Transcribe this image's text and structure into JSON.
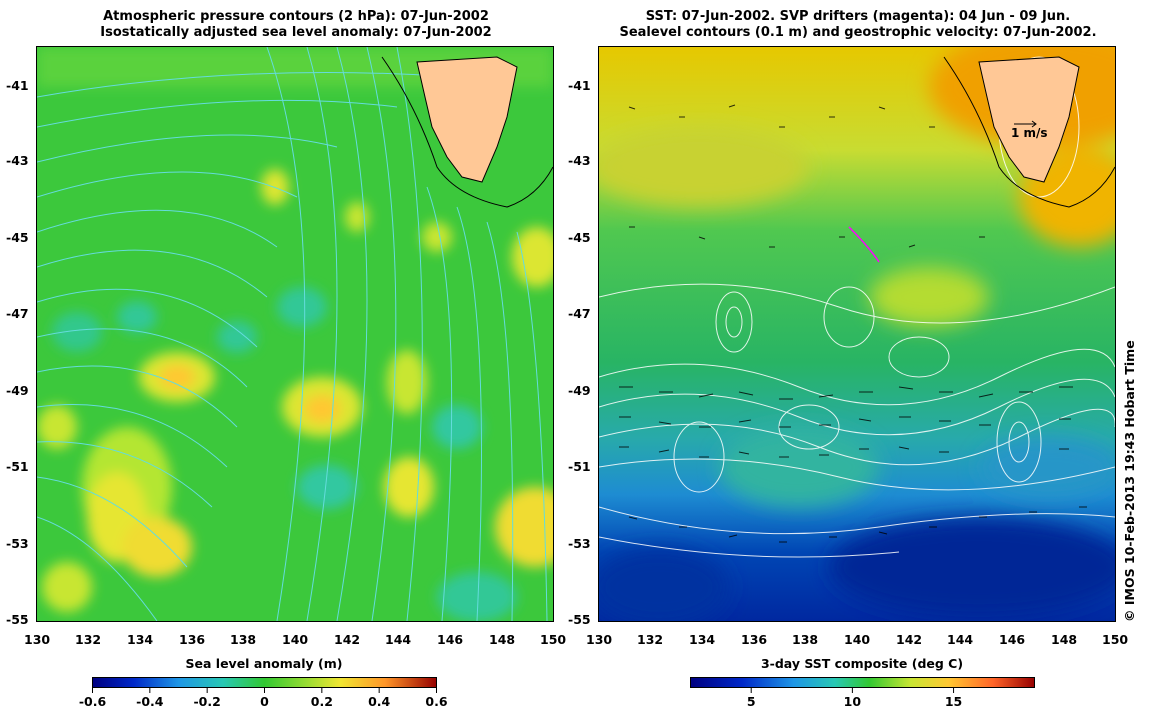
{
  "left_panel": {
    "title_line1": "Atmospheric pressure contours (2 hPa): 07-Jun-2002",
    "title_line2": "Isostatically adjusted sea level anomaly: 07-Jun-2002",
    "colorbar_title": "Sea level anomaly (m)",
    "colorbar_ticks": [
      "-0.6",
      "-0.4",
      "-0.2",
      "0",
      "0.2",
      "0.4",
      "0.6"
    ],
    "colorbar_range": [
      -0.6,
      0.6
    ]
  },
  "right_panel": {
    "title_line1": "SST: 07-Jun-2002. SVP drifters (magenta): 04 Jun - 09 Jun.",
    "title_line2": "Sealevel contours (0.1 m) and geostrophic velocity: 07-Jun-2002.",
    "colorbar_title": "3-day SST composite (deg C)",
    "colorbar_ticks": [
      "5",
      "10",
      "15"
    ],
    "colorbar_range": [
      2,
      19
    ],
    "scale_arrow_label": "1 m/s"
  },
  "axes": {
    "lon_ticks": [
      "130",
      "132",
      "134",
      "136",
      "138",
      "140",
      "142",
      "144",
      "146",
      "148",
      "150"
    ],
    "lat_ticks": [
      "-41",
      "-43",
      "-45",
      "-47",
      "-49",
      "-51",
      "-53",
      "-55"
    ],
    "lon_range": [
      130,
      150
    ],
    "lat_range": [
      -55,
      -40
    ]
  },
  "credit": "© IMOS 10-Feb-2013 19:43 Hobart Time",
  "colors": {
    "land": "#ffc896",
    "sla_background": "#32c832",
    "sst_warm": "#ffb400",
    "sst_cold": "#0028a0",
    "pressure_contour": "#64dcdc",
    "sealevel_contour": "#ffffff",
    "drifter": "#ff00ff"
  }
}
